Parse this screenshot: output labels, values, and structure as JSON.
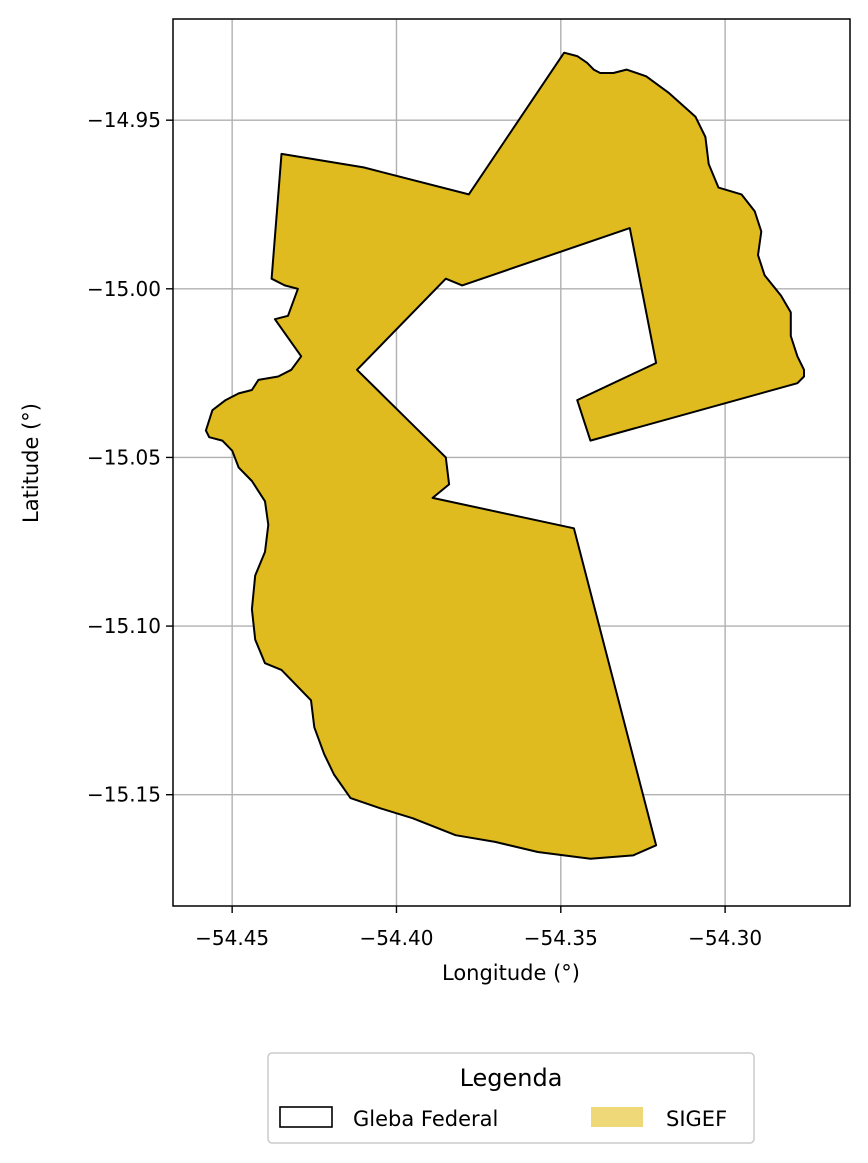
{
  "chart_data": {
    "type": "map",
    "xlabel": "Longitude (°)",
    "ylabel": "Latitude (°)",
    "xlim": [
      -54.468,
      -54.262
    ],
    "ylim": [
      -15.183,
      -14.92
    ],
    "xticks": [
      {
        "value": -54.45,
        "label": "−54.45"
      },
      {
        "value": -54.4,
        "label": "−54.40"
      },
      {
        "value": -54.35,
        "label": "−54.35"
      },
      {
        "value": -54.3,
        "label": "−54.30"
      }
    ],
    "yticks": [
      {
        "value": -14.95,
        "label": "−14.95"
      },
      {
        "value": -15.0,
        "label": "−15.00"
      },
      {
        "value": -15.05,
        "label": "−15.05"
      },
      {
        "value": -15.1,
        "label": "−15.10"
      },
      {
        "value": -15.15,
        "label": "−15.15"
      }
    ],
    "grid": true,
    "legend": {
      "title": "Legenda",
      "placement": "bottom-center",
      "entries": [
        {
          "label": "Gleba Federal",
          "style": "outline",
          "edge_color": "#000000"
        },
        {
          "label": "SIGEF",
          "style": "fill",
          "fill_color": "#eed877"
        }
      ]
    },
    "layers": [
      {
        "name": "SIGEF",
        "fill_color": "#dfbb1f",
        "edge_color": "#000000",
        "outer_ring": [
          [
            -54.349,
            -14.93
          ],
          [
            -54.345,
            -14.931
          ],
          [
            -54.342,
            -14.933
          ],
          [
            -54.34,
            -14.935
          ],
          [
            -54.338,
            -14.936
          ],
          [
            -54.334,
            -14.936
          ],
          [
            -54.33,
            -14.935
          ],
          [
            -54.324,
            -14.937
          ],
          [
            -54.317,
            -14.942
          ],
          [
            -54.309,
            -14.949
          ],
          [
            -54.306,
            -14.955
          ],
          [
            -54.305,
            -14.963
          ],
          [
            -54.302,
            -14.97
          ],
          [
            -54.295,
            -14.972
          ],
          [
            -54.291,
            -14.977
          ],
          [
            -54.289,
            -14.983
          ],
          [
            -54.29,
            -14.99
          ],
          [
            -54.288,
            -14.996
          ],
          [
            -54.283,
            -15.002
          ],
          [
            -54.28,
            -15.007
          ],
          [
            -54.28,
            -15.014
          ],
          [
            -54.278,
            -15.02
          ],
          [
            -54.276,
            -15.024
          ],
          [
            -54.276,
            -15.026
          ],
          [
            -54.278,
            -15.028
          ],
          [
            -54.341,
            -15.045
          ],
          [
            -54.345,
            -15.033
          ],
          [
            -54.321,
            -15.022
          ],
          [
            -54.329,
            -14.982
          ],
          [
            -54.38,
            -14.999
          ],
          [
            -54.385,
            -14.997
          ],
          [
            -54.412,
            -15.024
          ],
          [
            -54.385,
            -15.05
          ],
          [
            -54.384,
            -15.058
          ],
          [
            -54.389,
            -15.062
          ],
          [
            -54.346,
            -15.071
          ],
          [
            -54.321,
            -15.165
          ],
          [
            -54.328,
            -15.168
          ],
          [
            -54.341,
            -15.169
          ],
          [
            -54.357,
            -15.167
          ],
          [
            -54.37,
            -15.164
          ],
          [
            -54.382,
            -15.162
          ],
          [
            -54.395,
            -15.157
          ],
          [
            -54.405,
            -15.154
          ],
          [
            -54.414,
            -15.151
          ],
          [
            -54.419,
            -15.144
          ],
          [
            -54.422,
            -15.138
          ],
          [
            -54.425,
            -15.13
          ],
          [
            -54.426,
            -15.122
          ],
          [
            -54.431,
            -15.117
          ],
          [
            -54.435,
            -15.113
          ],
          [
            -54.44,
            -15.111
          ],
          [
            -54.443,
            -15.104
          ],
          [
            -54.444,
            -15.095
          ],
          [
            -54.443,
            -15.085
          ],
          [
            -54.44,
            -15.078
          ],
          [
            -54.439,
            -15.07
          ],
          [
            -54.44,
            -15.063
          ],
          [
            -54.444,
            -15.057
          ],
          [
            -54.448,
            -15.053
          ],
          [
            -54.45,
            -15.048
          ],
          [
            -54.453,
            -15.045
          ],
          [
            -54.457,
            -15.044
          ],
          [
            -54.458,
            -15.042
          ],
          [
            -54.456,
            -15.036
          ],
          [
            -54.452,
            -15.033
          ],
          [
            -54.448,
            -15.031
          ],
          [
            -54.444,
            -15.03
          ],
          [
            -54.442,
            -15.027
          ],
          [
            -54.436,
            -15.026
          ],
          [
            -54.432,
            -15.024
          ],
          [
            -54.429,
            -15.02
          ],
          [
            -54.437,
            -15.009
          ],
          [
            -54.433,
            -15.008
          ],
          [
            -54.43,
            -15.0
          ],
          [
            -54.434,
            -14.999
          ],
          [
            -54.438,
            -14.997
          ],
          [
            -54.435,
            -14.96
          ],
          [
            -54.41,
            -14.964
          ],
          [
            -54.378,
            -14.972
          ]
        ]
      },
      {
        "name": "Gleba Federal",
        "fill_color": "none",
        "edge_color": "#000000",
        "note": "outline coincides with SIGEF polygon boundary"
      }
    ]
  }
}
